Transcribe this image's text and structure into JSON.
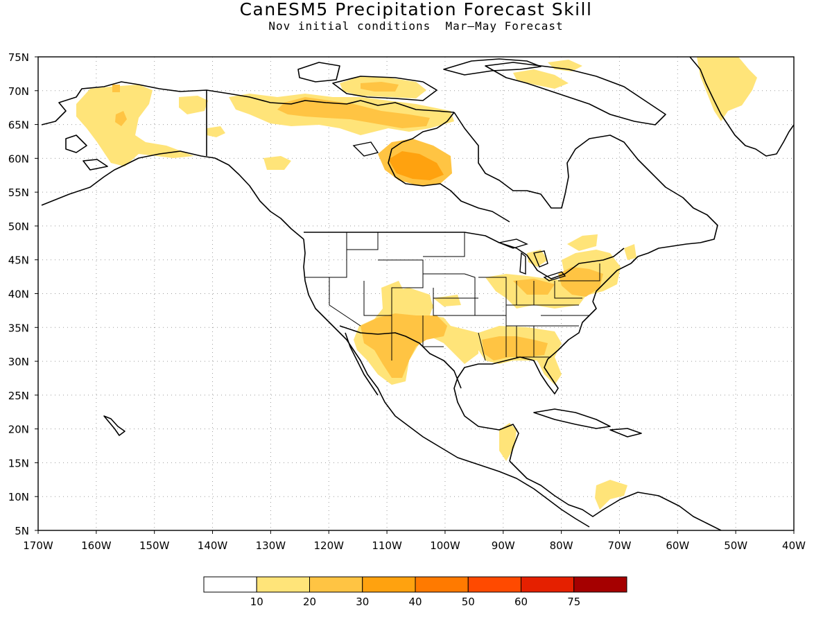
{
  "map": {
    "title": "CanESM5 Precipitation Forecast Skill",
    "subtitle": "Nov initial conditions  Mar—May Forecast",
    "lon_range": [
      -170,
      -40
    ],
    "lat_range": [
      5,
      75
    ],
    "lon_ticks": [
      "170W",
      "160W",
      "150W",
      "140W",
      "130W",
      "120W",
      "110W",
      "100W",
      "90W",
      "80W",
      "70W",
      "60W",
      "50W",
      "40W"
    ],
    "lat_ticks": [
      "5N",
      "10N",
      "15N",
      "20N",
      "25N",
      "30N",
      "35N",
      "40N",
      "45N",
      "50N",
      "55N",
      "60N",
      "65N",
      "70N",
      "75N"
    ],
    "gridlines": "dotted",
    "region": "North America"
  },
  "colorbar": {
    "labels": [
      "10",
      "20",
      "30",
      "40",
      "50",
      "60",
      "75"
    ],
    "colors": [
      "#ffffff",
      "#ffe479",
      "#ffc443",
      "#ffa20f",
      "#ff7a00",
      "#ff4a00",
      "#e52000",
      "#a50000"
    ]
  },
  "skill_regions": [
    {
      "area": "Alaska",
      "level": "10-20"
    },
    {
      "area": "Northern Canada",
      "level": "10-30"
    },
    {
      "area": "Hudson Bay west",
      "level": "20-30"
    },
    {
      "area": "Greenland",
      "level": "10-20"
    },
    {
      "area": "Southwest US / northern Mexico",
      "level": "10-30"
    },
    {
      "area": "Central Plains",
      "level": "10-20"
    },
    {
      "area": "Gulf Coast",
      "level": "10-20"
    },
    {
      "area": "Ohio Valley",
      "level": "10-20"
    },
    {
      "area": "Mid-Atlantic / Northeast",
      "level": "20-30"
    },
    {
      "area": "Yucatan",
      "level": "10-20"
    },
    {
      "area": "Northern South America",
      "level": "10-20"
    }
  ]
}
